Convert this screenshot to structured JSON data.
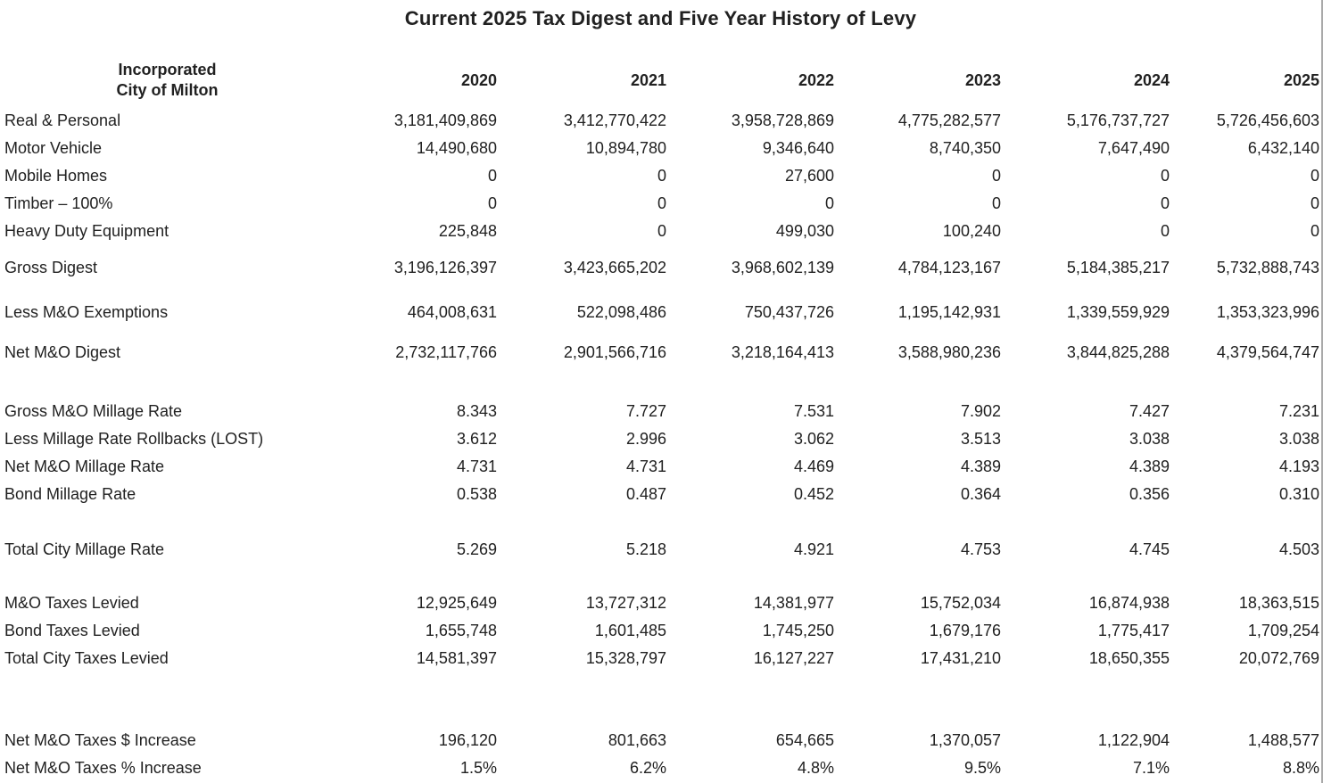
{
  "page": {
    "title": "Current 2025 Tax Digest and Five Year History of Levy"
  },
  "colors": {
    "text": "#212121",
    "border": "#a9a9a9",
    "background": "#ffffff"
  },
  "table": {
    "entity_line1": "Incorporated",
    "entity_line2": "City of Milton",
    "years": [
      "2020",
      "2021",
      "2022",
      "2023",
      "2024",
      "2025"
    ],
    "rows": [
      {
        "section": "digest-components",
        "label": "Real & Personal",
        "values": [
          "3,181,409,869",
          "3,412,770,422",
          "3,958,728,869",
          "4,775,282,577",
          "5,176,737,727",
          "5,726,456,603"
        ]
      },
      {
        "section": "digest-components",
        "label": "Motor Vehicle",
        "values": [
          "14,490,680",
          "10,894,780",
          "9,346,640",
          "8,740,350",
          "7,647,490",
          "6,432,140"
        ]
      },
      {
        "section": "digest-components",
        "label": "Mobile Homes",
        "values": [
          "0",
          "0",
          "27,600",
          "0",
          "0",
          "0"
        ]
      },
      {
        "section": "digest-components",
        "label": "Timber – 100%",
        "values": [
          "0",
          "0",
          "0",
          "0",
          "0",
          "0"
        ]
      },
      {
        "section": "digest-components",
        "label": "Heavy Duty Equipment",
        "values": [
          "225,848",
          "0",
          "499,030",
          "100,240",
          "0",
          "0"
        ]
      },
      {
        "section": "gross-digest",
        "label": "Gross Digest",
        "values": [
          "3,196,126,397",
          "3,423,665,202",
          "3,968,602,139",
          "4,784,123,167",
          "5,184,385,217",
          "5,732,888,743"
        ]
      },
      {
        "section": "exemptions",
        "label": "Less M&O Exemptions",
        "values": [
          "464,008,631",
          "522,098,486",
          "750,437,726",
          "1,195,142,931",
          "1,339,559,929",
          "1,353,323,996"
        ]
      },
      {
        "section": "net-digest",
        "label": "Net M&O Digest",
        "values": [
          "2,732,117,766",
          "2,901,566,716",
          "3,218,164,413",
          "3,588,980,236",
          "3,844,825,288",
          "4,379,564,747"
        ]
      },
      {
        "section": "millage-rates",
        "label": "Gross M&O Millage Rate",
        "values": [
          "8.343",
          "7.727",
          "7.531",
          "7.902",
          "7.427",
          "7.231"
        ]
      },
      {
        "section": "millage-rates",
        "label": "Less Millage Rate Rollbacks (LOST)",
        "values": [
          "3.612",
          "2.996",
          "3.062",
          "3.513",
          "3.038",
          "3.038"
        ]
      },
      {
        "section": "millage-rates",
        "label": "Net M&O Millage Rate",
        "values": [
          "4.731",
          "4.731",
          "4.469",
          "4.389",
          "4.389",
          "4.193"
        ]
      },
      {
        "section": "millage-rates",
        "label": "Bond Millage Rate",
        "values": [
          "0.538",
          "0.487",
          "0.452",
          "0.364",
          "0.356",
          "0.310"
        ]
      },
      {
        "section": "total-millage",
        "label": "Total City Millage Rate",
        "values": [
          "5.269",
          "5.218",
          "4.921",
          "4.753",
          "4.745",
          "4.503"
        ]
      },
      {
        "section": "taxes-levied",
        "label": "M&O Taxes Levied",
        "values": [
          "12,925,649",
          "13,727,312",
          "14,381,977",
          "15,752,034",
          "16,874,938",
          "18,363,515"
        ]
      },
      {
        "section": "taxes-levied",
        "label": "Bond Taxes Levied",
        "values": [
          "1,655,748",
          "1,601,485",
          "1,745,250",
          "1,679,176",
          "1,775,417",
          "1,709,254"
        ]
      },
      {
        "section": "taxes-levied",
        "label": "Total City Taxes Levied",
        "values": [
          "14,581,397",
          "15,328,797",
          "16,127,227",
          "17,431,210",
          "18,650,355",
          "20,072,769"
        ]
      },
      {
        "section": "increases",
        "label": "Net M&O Taxes $ Increase",
        "values": [
          "196,120",
          "801,663",
          "654,665",
          "1,370,057",
          "1,122,904",
          "1,488,577"
        ]
      },
      {
        "section": "increases",
        "label": "Net M&O Taxes % Increase",
        "values": [
          "1.5%",
          "6.2%",
          "4.8%",
          "9.5%",
          "7.1%",
          "8.8%"
        ]
      }
    ]
  }
}
